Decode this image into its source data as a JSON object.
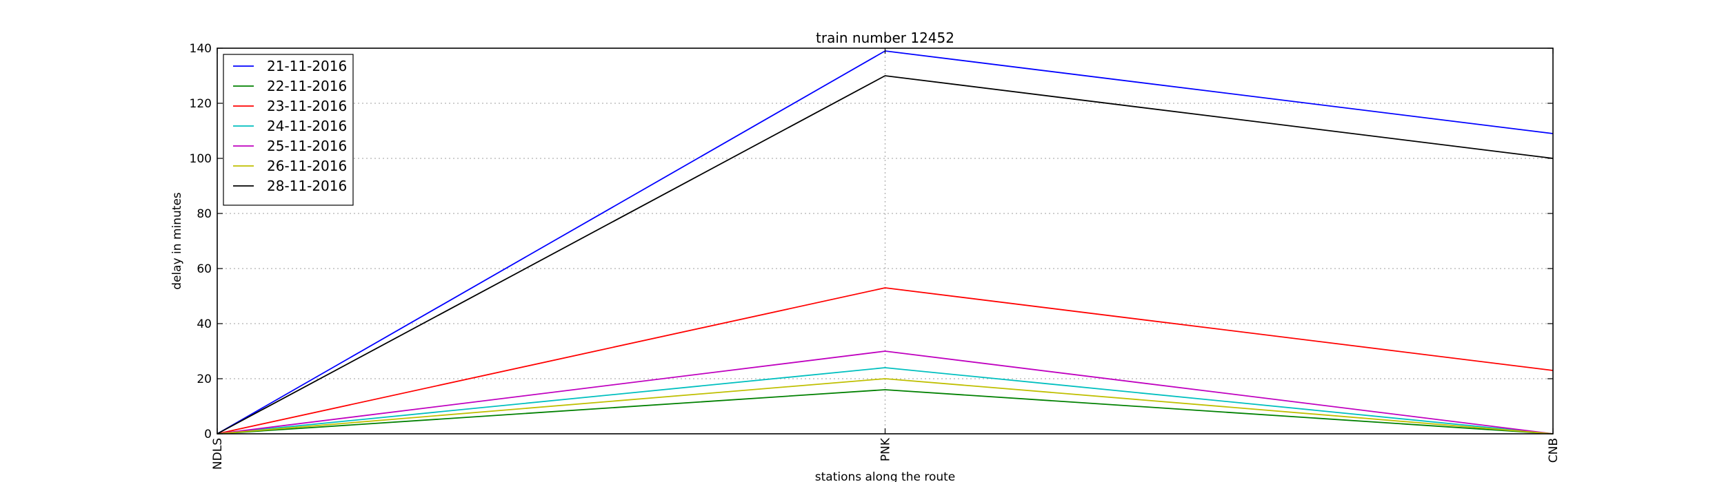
{
  "chart_data": {
    "type": "line",
    "title": "train number 12452",
    "xlabel": "stations along the route",
    "ylabel": "delay in minutes",
    "categories": [
      "NDLS",
      "PNK",
      "CNB"
    ],
    "ylim": [
      0,
      140
    ],
    "yticks": [
      0,
      20,
      40,
      60,
      80,
      100,
      120,
      140
    ],
    "grid": true,
    "legend_position": "top-left",
    "series": [
      {
        "name": "21-11-2016",
        "color": "#0000ff",
        "values": [
          0,
          139,
          109
        ]
      },
      {
        "name": "22-11-2016",
        "color": "#008000",
        "values": [
          0,
          16,
          0
        ]
      },
      {
        "name": "23-11-2016",
        "color": "#ff0000",
        "values": [
          0,
          53,
          23
        ]
      },
      {
        "name": "24-11-2016",
        "color": "#00bfbf",
        "values": [
          0,
          24,
          0
        ]
      },
      {
        "name": "25-11-2016",
        "color": "#bf00bf",
        "values": [
          0,
          30,
          0
        ]
      },
      {
        "name": "26-11-2016",
        "color": "#bfbf00",
        "values": [
          0,
          20,
          0
        ]
      },
      {
        "name": "28-11-2016",
        "color": "#000000",
        "values": [
          0,
          130,
          100
        ]
      }
    ]
  }
}
